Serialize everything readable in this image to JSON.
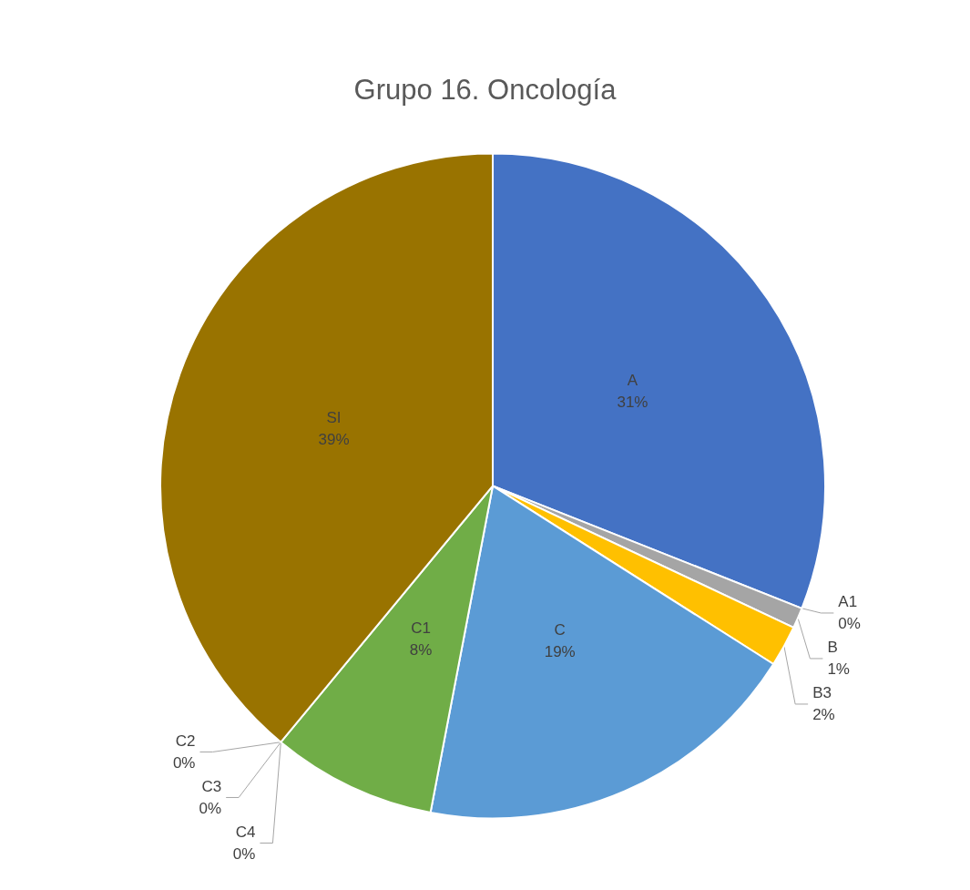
{
  "chart_data": {
    "type": "pie",
    "title": "Grupo 16. Oncología",
    "categories": [
      "A",
      "A1",
      "B",
      "B3",
      "C",
      "C1",
      "C2",
      "C3",
      "C4",
      "SI"
    ],
    "values": [
      31,
      0,
      1,
      2,
      19,
      8,
      0,
      0,
      0,
      39
    ],
    "value_labels": [
      "31%",
      "0%",
      "1%",
      "2%",
      "19%",
      "8%",
      "0%",
      "0%",
      "0%",
      "39%"
    ],
    "colors": [
      "#4472c4",
      "#ed7d31",
      "#a5a5a5",
      "#ffc000",
      "#5b9bd5",
      "#70ad47",
      "#264478",
      "#9e480e",
      "#636363",
      "#997300"
    ]
  }
}
